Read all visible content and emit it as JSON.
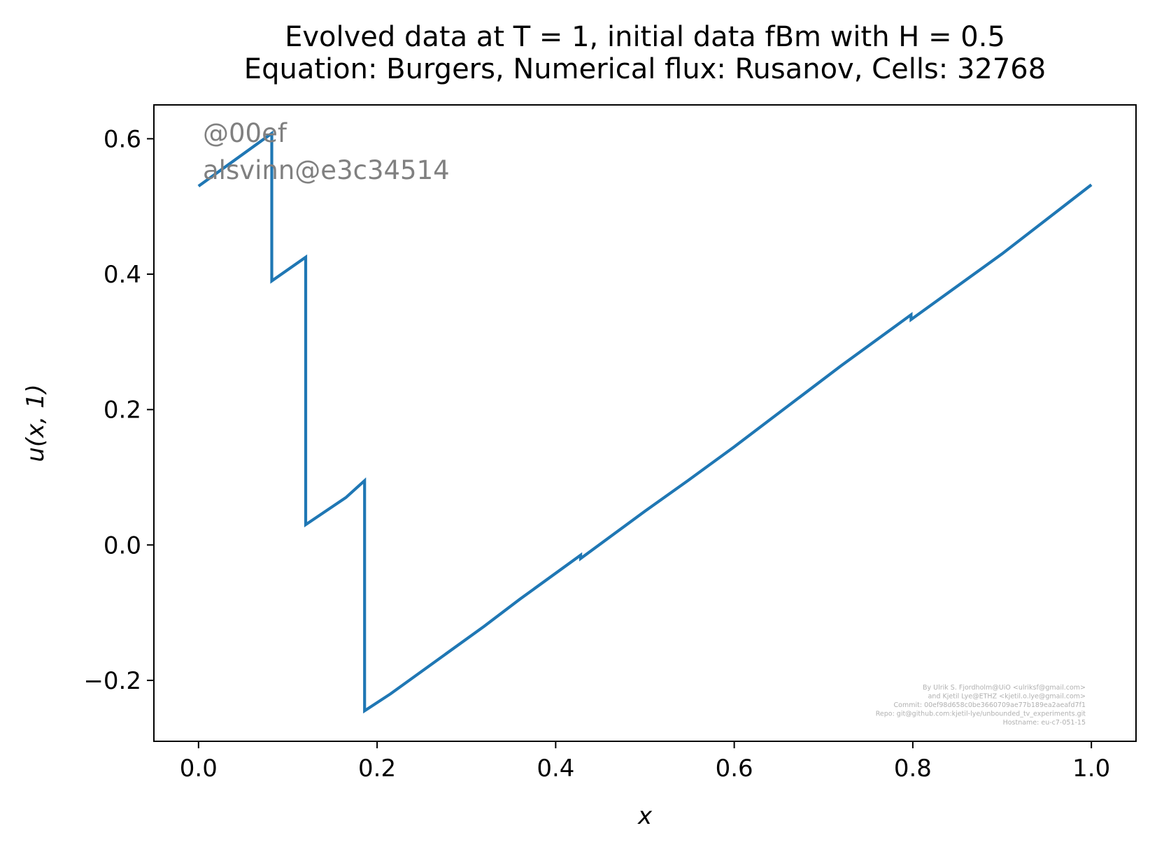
{
  "chart_data": {
    "type": "line",
    "title_lines": [
      "Evolved data at T = 1, initial data fBm with H = 0.5",
      "Equation: Burgers, Numerical flux: Rusanov, Cells: 32768"
    ],
    "xlabel": "x",
    "ylabel": "u(x, 1)",
    "xlim": [
      -0.05,
      1.05
    ],
    "ylim": [
      -0.29,
      0.65
    ],
    "x_ticks": [
      0.0,
      0.2,
      0.4,
      0.6,
      0.8,
      1.0
    ],
    "x_tick_labels": [
      "0.0",
      "0.2",
      "0.4",
      "0.6",
      "0.8",
      "1.0"
    ],
    "y_ticks": [
      -0.2,
      0.0,
      0.2,
      0.4,
      0.6
    ],
    "y_tick_labels": [
      "−0.2",
      "0.0",
      "0.2",
      "0.4",
      "0.6"
    ],
    "grid": false,
    "line_color": "#1f77b4",
    "series": [
      {
        "x": [
          0.0,
          0.082,
          0.082,
          0.12,
          0.12,
          0.165,
          0.186,
          0.186,
          0.215,
          0.32,
          0.36,
          0.428,
          0.428,
          0.5,
          0.548,
          0.6,
          0.72,
          0.798,
          0.798,
          0.9,
          1.0
        ],
        "y": [
          0.53,
          0.608,
          0.39,
          0.425,
          0.03,
          0.07,
          0.095,
          -0.245,
          -0.22,
          -0.12,
          -0.08,
          -0.015,
          -0.02,
          0.05,
          0.095,
          0.145,
          0.265,
          0.34,
          0.333,
          0.43,
          0.532
        ]
      }
    ],
    "watermark": [
      "@00ef",
      "alsvinn@e3c34514"
    ],
    "credits": [
      "By Ulrik S. Fjordholm@UiO <ulriksf@gmail.com>",
      "and Kjetil Lye@ETHZ <kjetil.o.lye@gmail.com>",
      "Commit: 00ef98d658c0be3660709ae77b189ea2aeafd7f1",
      "Repo: git@github.com:kjetil-lye/unbounded_tv_experiments.git",
      "Hostname: eu-c7-051-15"
    ]
  }
}
